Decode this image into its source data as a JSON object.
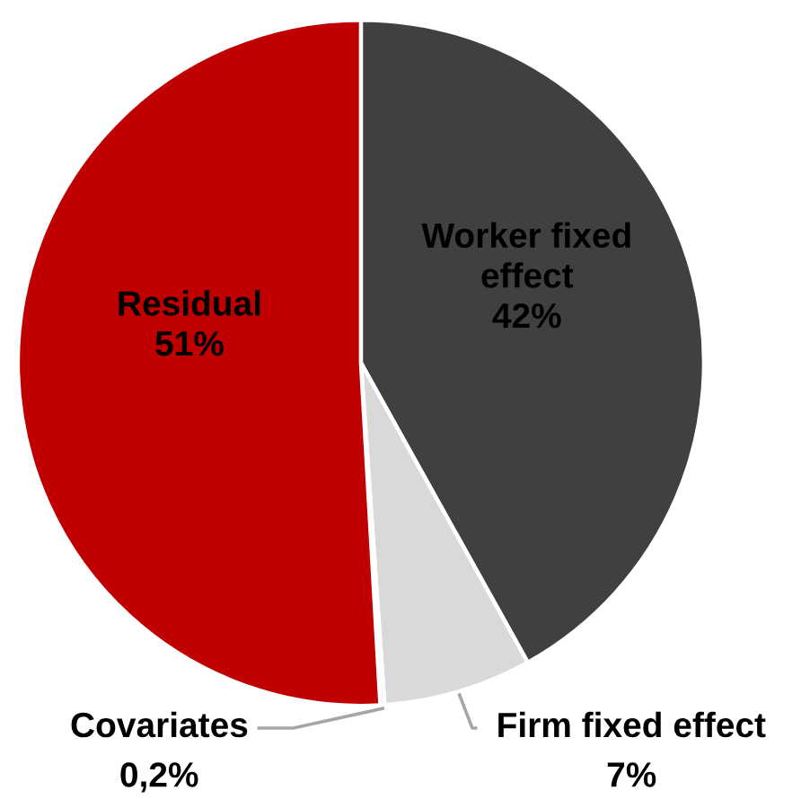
{
  "chart_data": {
    "type": "pie",
    "categories": [
      "Worker fixed effect",
      "Firm fixed effect",
      "Covariates",
      "Residual"
    ],
    "values": [
      42,
      7,
      0.2,
      51
    ],
    "colors": [
      "#404040",
      "#d9d9d9",
      "#a6a6a6",
      "#c00000"
    ],
    "value_labels": [
      "42%",
      "7%",
      "0,2%",
      "51%"
    ]
  }
}
